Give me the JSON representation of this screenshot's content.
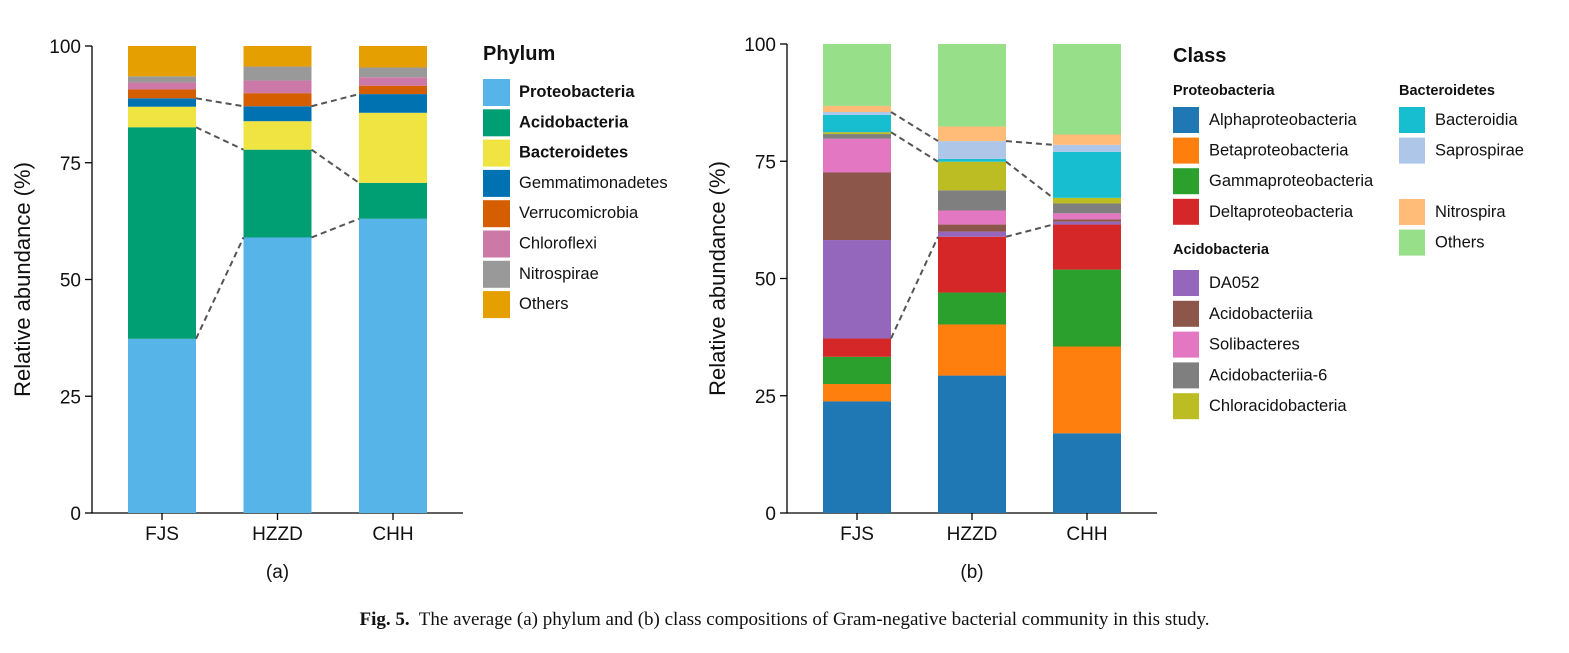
{
  "caption": {
    "label": "Fig. 5.",
    "text": "The average (a) phylum and (b) class compositions of Gram-negative bacterial community in this study."
  },
  "chart_data": [
    {
      "type": "bar",
      "stacked": true,
      "panel_label": "(a)",
      "categories": [
        "FJS",
        "HZZD",
        "CHH"
      ],
      "ylabel": "Relative abundance (%)",
      "ylim": [
        0,
        100
      ],
      "yticks": [
        0,
        25,
        50,
        75,
        100
      ],
      "grid": false,
      "legend_title": "Phylum",
      "legend_placement": "right",
      "series": [
        {
          "name": "Proteobacteria",
          "color": "#56B4E9",
          "bold": true,
          "values": [
            37.3,
            59.0,
            63.0
          ]
        },
        {
          "name": "Acidobacteria",
          "color": "#009E73",
          "bold": true,
          "values": [
            45.3,
            18.8,
            7.7
          ]
        },
        {
          "name": "Bacteroidetes",
          "color": "#F0E442",
          "bold": true,
          "values": [
            4.4,
            6.1,
            15.0
          ]
        },
        {
          "name": "Gemmatimonadetes",
          "color": "#0072B2",
          "bold": false,
          "values": [
            1.8,
            3.2,
            4.0
          ]
        },
        {
          "name": "Verrucomicrobia",
          "color": "#D55E00",
          "bold": false,
          "values": [
            1.9,
            2.8,
            1.8
          ]
        },
        {
          "name": "Chloroflexi",
          "color": "#CC79A7",
          "bold": false,
          "values": [
            1.5,
            2.7,
            1.8
          ]
        },
        {
          "name": "Nitrospirae",
          "color": "#999999",
          "bold": false,
          "values": [
            1.3,
            3.0,
            2.1
          ]
        },
        {
          "name": "Others",
          "color": "#E69F00",
          "bold": false,
          "values": [
            6.5,
            4.4,
            4.6
          ]
        }
      ],
      "connectors": [
        {
          "between": [
            "FJS",
            "HZZD"
          ],
          "at_series_tops": [
            "Proteobacteria",
            "Acidobacteria",
            "Gemmatimonadetes"
          ]
        },
        {
          "between": [
            "HZZD",
            "CHH"
          ],
          "at_series_tops": [
            "Proteobacteria",
            "Acidobacteria",
            "Gemmatimonadetes"
          ]
        }
      ]
    },
    {
      "type": "bar",
      "stacked": true,
      "panel_label": "(b)",
      "categories": [
        "FJS",
        "HZZD",
        "CHH"
      ],
      "ylabel": "Relative abundance (%)",
      "ylim": [
        0,
        100
      ],
      "yticks": [
        0,
        25,
        50,
        75,
        100
      ],
      "grid": false,
      "legend_title": "Class",
      "legend_placement": "right",
      "legend_groups": [
        {
          "title": "Proteobacteria",
          "items": [
            "Alphaproteobacteria",
            "Betaproteobacteria",
            "Gammaproteobacteria",
            "Deltaproteobacteria"
          ]
        },
        {
          "title": "Acidobacteria",
          "items": [
            "DA052",
            "Acidobacteriia",
            "Solibacteres",
            "Acidobacteriia-6",
            "Chloracidobacteria"
          ]
        },
        {
          "title": "Bacteroidetes",
          "items": [
            "Bacteroidia",
            "Saprospirae"
          ]
        },
        {
          "title": "",
          "items": [
            "Nitrospira",
            "Others"
          ]
        }
      ],
      "series": [
        {
          "name": "Alphaproteobacteria",
          "color": "#1F77B4",
          "values": [
            23.8,
            29.3,
            17.0
          ]
        },
        {
          "name": "Betaproteobacteria",
          "color": "#FF7F0E",
          "values": [
            3.7,
            10.9,
            18.5
          ]
        },
        {
          "name": "Gammaproteobacteria",
          "color": "#2CA02C",
          "values": [
            5.8,
            6.8,
            16.4
          ]
        },
        {
          "name": "Deltaproteobacteria",
          "color": "#D62728",
          "values": [
            3.9,
            11.9,
            9.6
          ]
        },
        {
          "name": "DA052",
          "color": "#9467BD",
          "values": [
            21.0,
            1.1,
            0.6
          ]
        },
        {
          "name": "Acidobacteriia",
          "color": "#8C564B",
          "values": [
            14.4,
            1.5,
            0.5
          ]
        },
        {
          "name": "Solibacteres",
          "color": "#E377C2",
          "values": [
            7.2,
            3.0,
            1.3
          ]
        },
        {
          "name": "Acidobacteriia-6",
          "color": "#7F7F7F",
          "values": [
            1.0,
            4.3,
            2.1
          ]
        },
        {
          "name": "Chloracidobacteria",
          "color": "#BCBD22",
          "values": [
            0.4,
            6.1,
            1.2
          ]
        },
        {
          "name": "Bacteroidia",
          "color": "#17BECF",
          "values": [
            3.7,
            0.6,
            9.8
          ]
        },
        {
          "name": "Saprospirae",
          "color": "#AEC7E8",
          "values": [
            0.6,
            3.8,
            1.5
          ]
        },
        {
          "name": "Nitrospira",
          "color": "#FFBB78",
          "values": [
            1.3,
            3.1,
            2.2
          ]
        },
        {
          "name": "Others",
          "color": "#98DF8A",
          "values": [
            13.2,
            17.6,
            19.3
          ]
        }
      ],
      "connectors": [
        {
          "between": [
            "FJS",
            "HZZD"
          ],
          "at_series_tops": [
            "Deltaproteobacteria",
            "Chloracidobacteria",
            "Saprospirae"
          ]
        },
        {
          "between": [
            "HZZD",
            "CHH"
          ],
          "at_series_tops": [
            "Deltaproteobacteria",
            "Chloracidobacteria",
            "Saprospirae"
          ]
        }
      ]
    }
  ]
}
